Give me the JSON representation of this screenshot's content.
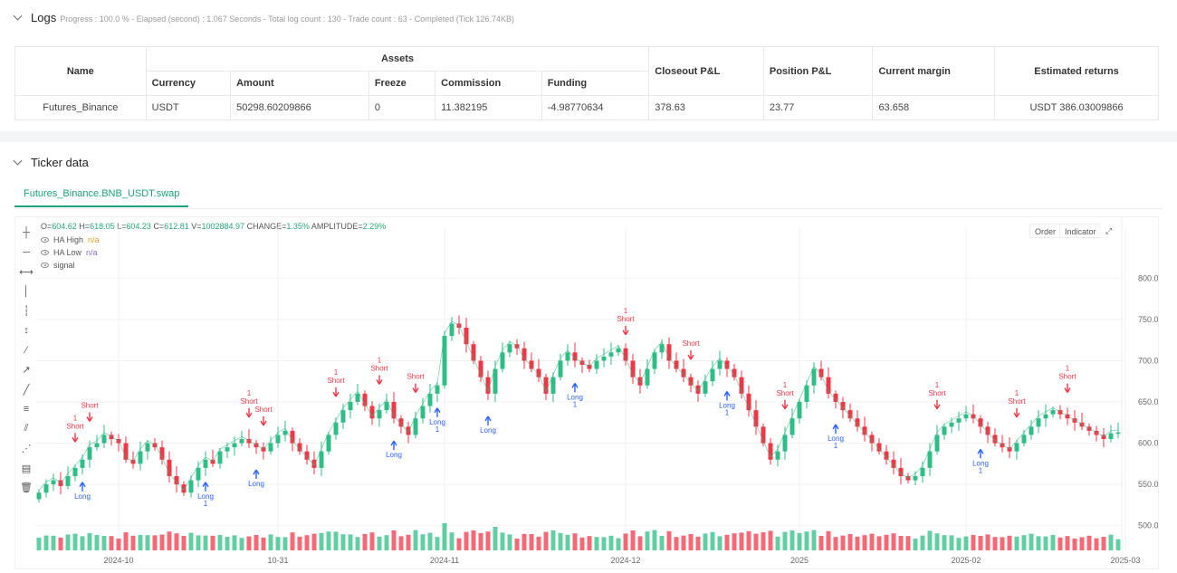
{
  "logs": {
    "title": "Logs",
    "meta": "Progress : 100.0 % - Elapsed (second) : 1.067  Seconds - Total log count : 130 - Trade count : 63 - Completed (Tick 126.74KB)",
    "table": {
      "group_header": "Assets",
      "headers": {
        "name": "Name",
        "currency": "Currency",
        "amount": "Amount",
        "freeze": "Freeze",
        "commission": "Commission",
        "funding": "Funding",
        "closeout": "Closeout P&L",
        "position": "Position P&L",
        "margin": "Current margin",
        "returns": "Estimated returns"
      },
      "row": {
        "name": "Futures_Binance",
        "currency": "USDT",
        "amount": "50298.60209866",
        "freeze": "0",
        "commission": "11.382195",
        "funding": "-4.98770634",
        "closeout": "378.63",
        "position": "23.77",
        "margin": "63.658",
        "returns": "USDT 386.03009866"
      }
    }
  },
  "ticker": {
    "title": "Ticker data",
    "tab": "Futures_Binance.BNB_USDT.swap",
    "ohlc": {
      "o_label": "O=",
      "o": "604.62",
      "h_label": "H=",
      "h": "618.05",
      "l_label": "L=",
      "l": "604.23",
      "c_label": "C=",
      "c": "612.81",
      "v_label": "V=",
      "v": "1002884.97",
      "change_label": "CHANGE=",
      "change": "1.35%",
      "amp_label": "AMPLITUDE=",
      "amp": "2.29%"
    },
    "legend": [
      {
        "label": "HA High",
        "value": "n/a"
      },
      {
        "label": "HA Low",
        "value": "n/a"
      },
      {
        "label": "signal",
        "value": ""
      }
    ],
    "buttons": {
      "order": "Order",
      "indicator": "Indicator"
    },
    "toolbar_icons": [
      "crosshair-icon",
      "horizontal-line-icon",
      "horizontal-ray-icon",
      "vertical-line-icon",
      "vertical-segment-icon",
      "vertical-ray-icon",
      "trend-line-icon",
      "ray-line-icon",
      "segment-icon",
      "price-channel-icon",
      "parallel-channel-icon",
      "fibonacci-icon",
      "ruler-icon",
      "trash-icon"
    ]
  },
  "chart_data": {
    "type": "candlestick",
    "y_ticks": [
      "800.000",
      "750.000",
      "700.000",
      "650.000",
      "600.000",
      "550.000",
      "500.000"
    ],
    "y_tick_values": [
      800,
      750,
      700,
      650,
      600,
      550,
      500
    ],
    "ylim": [
      470,
      830
    ],
    "x_ticks": [
      "2024-10",
      "10-31",
      "2024-11",
      "2024-12",
      "2025",
      "2025-02",
      "2025-03"
    ],
    "x_tick_index": [
      11,
      33,
      56,
      81,
      105,
      128,
      150
    ],
    "colors": {
      "up": "#2ebd85",
      "down": "#f23645",
      "long": "#2962ff",
      "short": "#e91e63",
      "signal_purple": "#9c27b0"
    },
    "close": [
      540,
      550,
      555,
      548,
      560,
      570,
      580,
      595,
      600,
      610,
      605,
      600,
      580,
      575,
      590,
      600,
      595,
      580,
      560,
      550,
      540,
      555,
      570,
      580,
      575,
      590,
      595,
      600,
      605,
      600,
      595,
      590,
      600,
      610,
      615,
      600,
      590,
      580,
      570,
      590,
      610,
      625,
      640,
      650,
      660,
      645,
      630,
      640,
      650,
      630,
      620,
      610,
      630,
      645,
      660,
      670,
      730,
      745,
      740,
      720,
      700,
      680,
      660,
      690,
      710,
      720,
      715,
      700,
      690,
      680,
      660,
      680,
      700,
      710,
      700,
      695,
      690,
      700,
      705,
      710,
      715,
      700,
      680,
      670,
      690,
      710,
      720,
      700,
      690,
      680,
      670,
      660,
      675,
      690,
      700,
      690,
      680,
      660,
      640,
      620,
      600,
      580,
      590,
      610,
      630,
      650,
      670,
      690,
      680,
      660,
      650,
      640,
      630,
      620,
      610,
      600,
      590,
      580,
      570,
      560,
      555,
      560,
      570,
      590,
      610,
      620,
      625,
      630,
      635,
      630,
      620,
      610,
      600,
      595,
      590,
      600,
      610,
      620,
      630,
      635,
      640,
      635,
      630,
      625,
      620,
      615,
      610,
      605,
      612,
      613
    ],
    "signals": [
      {
        "type": "short",
        "index": 5,
        "label": "Short",
        "count": "1"
      },
      {
        "type": "long",
        "index": 6,
        "label": "Long",
        "count": ""
      },
      {
        "type": "short",
        "index": 7,
        "label": "Short",
        "count": ""
      },
      {
        "type": "short",
        "index": 29,
        "label": "Short",
        "count": "1"
      },
      {
        "type": "long",
        "index": 30,
        "label": "Long",
        "count": ""
      },
      {
        "type": "short",
        "index": 31,
        "label": "Short",
        "count": ""
      },
      {
        "type": "long",
        "index": 23,
        "label": "Long",
        "count": "1"
      },
      {
        "type": "short",
        "index": 41,
        "label": "Short",
        "count": "1"
      },
      {
        "type": "short",
        "index": 47,
        "label": "Short",
        "count": "1"
      },
      {
        "type": "long",
        "index": 49,
        "label": "Long",
        "count": ""
      },
      {
        "type": "short",
        "index": 52,
        "label": "Short",
        "count": ""
      },
      {
        "type": "long",
        "index": 55,
        "label": "Long",
        "count": "1"
      },
      {
        "type": "long",
        "index": 62,
        "label": "Long",
        "count": ""
      },
      {
        "type": "long",
        "index": 74,
        "label": "Long",
        "count": "1"
      },
      {
        "type": "short",
        "index": 81,
        "label": "Short",
        "count": "1"
      },
      {
        "type": "short",
        "index": 90,
        "label": "Short",
        "count": ""
      },
      {
        "type": "long",
        "index": 95,
        "label": "Long",
        "count": "1"
      },
      {
        "type": "short",
        "index": 103,
        "label": "Short",
        "count": "1"
      },
      {
        "type": "long",
        "index": 110,
        "label": "Long",
        "count": "1"
      },
      {
        "type": "short",
        "index": 124,
        "label": "Short",
        "count": "1"
      },
      {
        "type": "long",
        "index": 130,
        "label": "Long",
        "count": "1"
      },
      {
        "type": "short",
        "index": 135,
        "label": "Short",
        "count": "1"
      },
      {
        "type": "short",
        "index": 142,
        "label": "Short",
        "count": "1"
      }
    ]
  }
}
